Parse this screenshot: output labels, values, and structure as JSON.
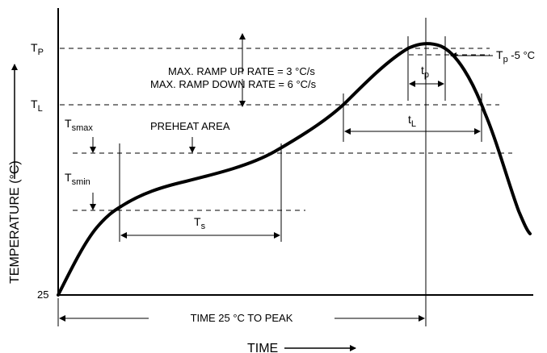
{
  "axes": {
    "y_label": "TEMPERATURE (°C)",
    "x_label": "TIME",
    "origin_label": "25"
  },
  "levels": {
    "tp": {
      "main": "T",
      "sub": "P"
    },
    "tl": {
      "main": "T",
      "sub": "L"
    },
    "tsmax": {
      "main": "T",
      "sub": "smax"
    },
    "tsmin": {
      "main": "T",
      "sub": "smin"
    }
  },
  "annotations": {
    "ramp_up": "MAX. RAMP UP RATE = 3 °C/s",
    "ramp_down": "MAX. RAMP DOWN RATE = 6 °C/s",
    "preheat": "PREHEAT AREA",
    "tp_minus5": "T",
    "tp_minus5_sub": "p",
    "tp_minus5_tail": " -5 °C",
    "time_to_peak": "TIME 25 °C TO PEAK",
    "ts": {
      "main": "T",
      "sub": "s"
    },
    "tl_span": {
      "main": "t",
      "sub": "L"
    },
    "tp_span": {
      "main": "t",
      "sub": "p"
    }
  }
}
